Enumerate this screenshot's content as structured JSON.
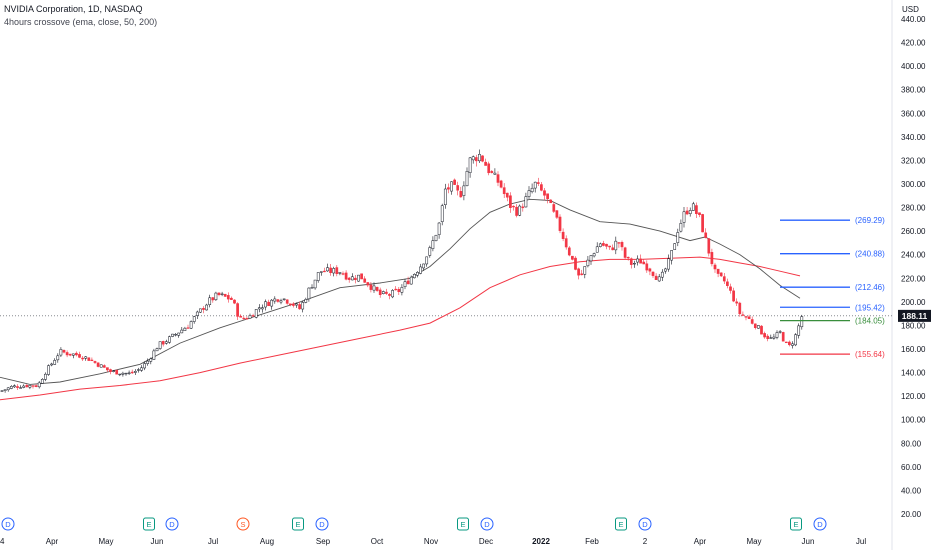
{
  "header": {
    "symbol_line": "NVIDIA Corporation, 1D, NASDAQ",
    "indicator_line": "4hours crossove (ema, close, 50, 200)"
  },
  "chart_data": {
    "type": "candlestick",
    "currency": "USD",
    "y_ticks": [
      20,
      40,
      60,
      80,
      100,
      120,
      140,
      160,
      180,
      200,
      220,
      240,
      260,
      280,
      300,
      320,
      340,
      360,
      380,
      400,
      420,
      440
    ],
    "x_ticks": [
      "4",
      "Apr",
      "May",
      "Jun",
      "Jul",
      "Aug",
      "Sep",
      "Oct",
      "Nov",
      "Dec",
      "2022",
      "Feb",
      "2",
      "Apr",
      "May",
      "Jun",
      "Jul"
    ],
    "last_price": 188.11,
    "levels": [
      {
        "label": "(269.29)",
        "value": 269.29,
        "color": "#2962ff"
      },
      {
        "label": "(240.88)",
        "value": 240.88,
        "color": "#2962ff"
      },
      {
        "label": "(212.46)",
        "value": 212.46,
        "color": "#2962ff"
      },
      {
        "label": "(195.42)",
        "value": 195.42,
        "color": "#2962ff"
      },
      {
        "label": "(184.05)",
        "value": 184.05,
        "color": "#388e3c"
      },
      {
        "label": "(155.64)",
        "value": 155.64,
        "color": "#f23645"
      }
    ],
    "events": [
      {
        "letter": "D",
        "kind": "dividend",
        "color": "#2962ff"
      },
      {
        "letter": "E",
        "kind": "earnings",
        "color": "#089981"
      },
      {
        "letter": "D",
        "kind": "dividend",
        "color": "#2962ff"
      },
      {
        "letter": "S",
        "kind": "split",
        "color": "#ff5722"
      },
      {
        "letter": "E",
        "kind": "earnings",
        "color": "#089981"
      },
      {
        "letter": "D",
        "kind": "dividend",
        "color": "#2962ff"
      },
      {
        "letter": "E",
        "kind": "earnings",
        "color": "#089981"
      },
      {
        "letter": "D",
        "kind": "dividend",
        "color": "#2962ff"
      },
      {
        "letter": "E",
        "kind": "earnings",
        "color": "#089981"
      },
      {
        "letter": "D",
        "kind": "dividend",
        "color": "#2962ff"
      },
      {
        "letter": "E",
        "kind": "earnings",
        "color": "#089981"
      },
      {
        "letter": "D",
        "kind": "dividend",
        "color": "#2962ff"
      }
    ],
    "close_path": [
      [
        0,
        124
      ],
      [
        12,
        128
      ],
      [
        25,
        129
      ],
      [
        38,
        129
      ],
      [
        45,
        140
      ],
      [
        52,
        148
      ],
      [
        60,
        158
      ],
      [
        68,
        156
      ],
      [
        78,
        155
      ],
      [
        88,
        152
      ],
      [
        100,
        146
      ],
      [
        110,
        141
      ],
      [
        120,
        140
      ],
      [
        130,
        139
      ],
      [
        140,
        143
      ],
      [
        148,
        150
      ],
      [
        158,
        163
      ],
      [
        168,
        168
      ],
      [
        178,
        174
      ],
      [
        188,
        180
      ],
      [
        198,
        190
      ],
      [
        208,
        200
      ],
      [
        218,
        206
      ],
      [
        225,
        204
      ],
      [
        232,
        202
      ],
      [
        240,
        185
      ],
      [
        250,
        188
      ],
      [
        260,
        196
      ],
      [
        270,
        200
      ],
      [
        280,
        204
      ],
      [
        290,
        200
      ],
      [
        300,
        194
      ],
      [
        310,
        212
      ],
      [
        320,
        226
      ],
      [
        330,
        226
      ],
      [
        340,
        226
      ],
      [
        350,
        220
      ],
      [
        360,
        222
      ],
      [
        370,
        214
      ],
      [
        380,
        206
      ],
      [
        390,
        206
      ],
      [
        400,
        210
      ],
      [
        410,
        220
      ],
      [
        420,
        230
      ],
      [
        430,
        244
      ],
      [
        440,
        268
      ],
      [
        445,
        295
      ],
      [
        452,
        298
      ],
      [
        460,
        290
      ],
      [
        470,
        320
      ],
      [
        480,
        325
      ],
      [
        490,
        310
      ],
      [
        500,
        300
      ],
      [
        505,
        290
      ],
      [
        510,
        282
      ],
      [
        518,
        276
      ],
      [
        528,
        290
      ],
      [
        535,
        300
      ],
      [
        545,
        290
      ],
      [
        552,
        278
      ],
      [
        560,
        262
      ],
      [
        570,
        240
      ],
      [
        580,
        220
      ],
      [
        590,
        238
      ],
      [
        600,
        250
      ],
      [
        610,
        244
      ],
      [
        618,
        252
      ],
      [
        625,
        238
      ],
      [
        632,
        232
      ],
      [
        640,
        235
      ],
      [
        650,
        228
      ],
      [
        660,
        218
      ],
      [
        670,
        236
      ],
      [
        678,
        262
      ],
      [
        685,
        276
      ],
      [
        692,
        282
      ],
      [
        700,
        270
      ],
      [
        708,
        245
      ],
      [
        716,
        222
      ],
      [
        724,
        218
      ],
      [
        732,
        206
      ],
      [
        740,
        190
      ],
      [
        748,
        186
      ],
      [
        756,
        180
      ],
      [
        764,
        172
      ],
      [
        772,
        168
      ],
      [
        780,
        174
      ],
      [
        786,
        164
      ],
      [
        790,
        162
      ],
      [
        796,
        172
      ],
      [
        802,
        188.11
      ]
    ],
    "ema50_path": [
      [
        0,
        136
      ],
      [
        30,
        130
      ],
      [
        60,
        132
      ],
      [
        100,
        139
      ],
      [
        140,
        147
      ],
      [
        180,
        165
      ],
      [
        220,
        178
      ],
      [
        260,
        189
      ],
      [
        300,
        200
      ],
      [
        340,
        212
      ],
      [
        380,
        216
      ],
      [
        410,
        220
      ],
      [
        430,
        230
      ],
      [
        450,
        245
      ],
      [
        470,
        262
      ],
      [
        490,
        276
      ],
      [
        510,
        283
      ],
      [
        530,
        287
      ],
      [
        550,
        286
      ],
      [
        570,
        278
      ],
      [
        600,
        268
      ],
      [
        630,
        266
      ],
      [
        660,
        260
      ],
      [
        690,
        252
      ],
      [
        705,
        255
      ],
      [
        720,
        249
      ],
      [
        740,
        240
      ],
      [
        760,
        228
      ],
      [
        780,
        214
      ],
      [
        800,
        203
      ]
    ],
    "ema200_path": [
      [
        0,
        117
      ],
      [
        40,
        121
      ],
      [
        80,
        126
      ],
      [
        120,
        129
      ],
      [
        160,
        133
      ],
      [
        200,
        140
      ],
      [
        240,
        148
      ],
      [
        280,
        155
      ],
      [
        320,
        162
      ],
      [
        360,
        169
      ],
      [
        400,
        176
      ],
      [
        430,
        182
      ],
      [
        460,
        195
      ],
      [
        490,
        212
      ],
      [
        520,
        223
      ],
      [
        550,
        230
      ],
      [
        580,
        234
      ],
      [
        610,
        236
      ],
      [
        640,
        236
      ],
      [
        670,
        237
      ],
      [
        700,
        238
      ],
      [
        720,
        236
      ],
      [
        740,
        233
      ],
      [
        760,
        230
      ],
      [
        780,
        226
      ],
      [
        800,
        222
      ]
    ]
  }
}
